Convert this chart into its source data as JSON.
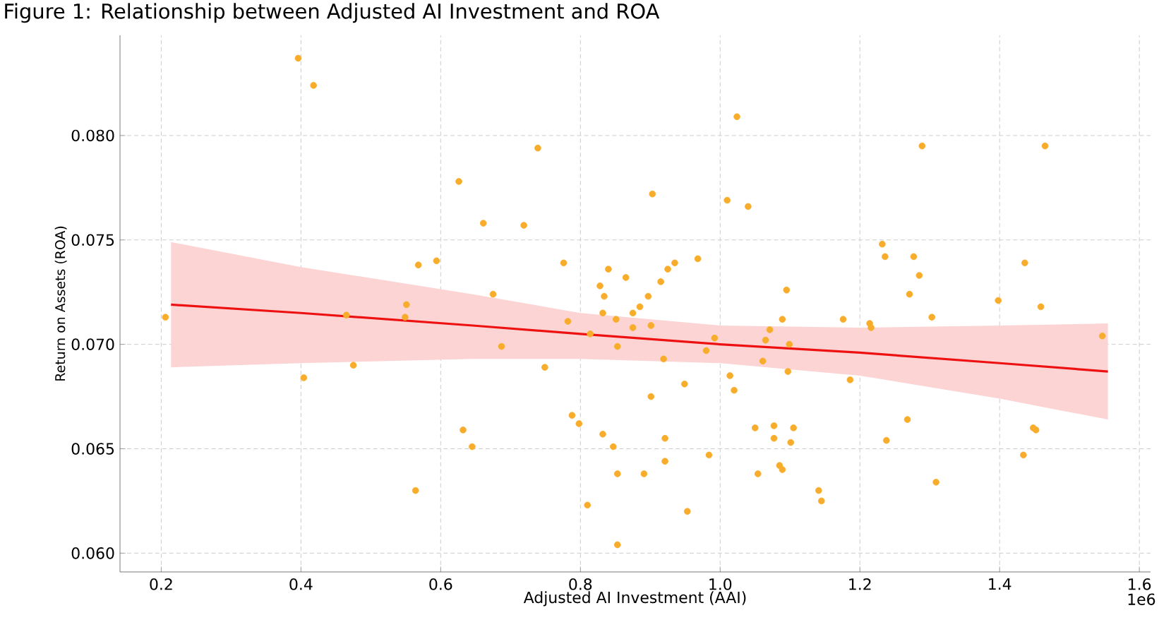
{
  "chart_data": {
    "type": "scatter",
    "title": "Figure 1: Relationship between Adjusted AI Investment and ROA",
    "xlabel": "Adjusted AI Investment (AAI)",
    "ylabel": "Return on Assets (ROA)",
    "annotations": [
      "1e6"
    ],
    "grid": true,
    "marker": "circle",
    "xlim": [
      0.141,
      1.616
    ],
    "ylim": [
      0.0591,
      0.0848
    ],
    "xticks": [
      {
        "value": 0.2,
        "label": "0.2"
      },
      {
        "value": 0.4,
        "label": "0.4"
      },
      {
        "value": 0.6,
        "label": "0.6"
      },
      {
        "value": 0.8,
        "label": "0.8"
      },
      {
        "value": 1.0,
        "label": "1.0"
      },
      {
        "value": 1.2,
        "label": "1.2"
      },
      {
        "value": 1.4,
        "label": "1.4"
      },
      {
        "value": 1.6,
        "label": "1.6"
      }
    ],
    "yticks": [
      {
        "value": 0.06,
        "label": "0.060"
      },
      {
        "value": 0.065,
        "label": "0.065"
      },
      {
        "value": 0.07,
        "label": "0.070"
      },
      {
        "value": 0.075,
        "label": "0.075"
      },
      {
        "value": 0.08,
        "label": "0.080"
      }
    ],
    "series": [
      {
        "color": "#f7ad2b",
        "x": [
          0.206,
          0.396,
          0.418,
          0.404,
          0.465,
          0.475,
          0.551,
          0.549,
          0.568,
          0.564,
          0.594,
          0.626,
          0.632,
          0.645,
          0.661,
          0.675,
          0.687,
          0.719,
          0.739,
          0.749,
          0.776,
          0.782,
          0.788,
          0.798,
          0.81,
          0.814,
          0.828,
          0.832,
          0.834,
          0.832,
          0.84,
          0.847,
          0.853,
          0.851,
          0.853,
          0.853,
          0.865,
          0.875,
          0.875,
          0.885,
          0.891,
          0.901,
          0.901,
          0.903,
          0.897,
          0.915,
          0.919,
          0.921,
          0.921,
          0.925,
          0.935,
          0.949,
          0.953,
          0.968,
          0.98,
          0.984,
          0.992,
          1.01,
          1.014,
          1.02,
          1.024,
          1.04,
          1.05,
          1.054,
          1.065,
          1.061,
          1.071,
          1.077,
          1.077,
          1.085,
          1.089,
          1.089,
          1.095,
          1.099,
          1.097,
          1.105,
          1.101,
          1.141,
          1.145,
          1.176,
          1.186,
          1.214,
          1.216,
          1.232,
          1.236,
          1.238,
          1.268,
          1.271,
          1.277,
          1.285,
          1.289,
          1.303,
          1.309,
          1.398,
          1.436,
          1.434,
          1.448,
          1.452,
          1.459,
          1.465,
          1.547
        ],
        "values": [
          0.0713,
          0.0837,
          0.0824,
          0.0684,
          0.0714,
          0.069,
          0.0719,
          0.0713,
          0.0738,
          0.063,
          0.074,
          0.0778,
          0.0659,
          0.0651,
          0.0758,
          0.0724,
          0.0699,
          0.0757,
          0.0794,
          0.0689,
          0.0739,
          0.0711,
          0.0666,
          0.0662,
          0.0623,
          0.0705,
          0.0728,
          0.0715,
          0.0723,
          0.0657,
          0.0736,
          0.0651,
          0.0604,
          0.0712,
          0.0699,
          0.0638,
          0.0732,
          0.0715,
          0.0708,
          0.0718,
          0.0638,
          0.0675,
          0.0709,
          0.0772,
          0.0723,
          0.073,
          0.0693,
          0.0644,
          0.0655,
          0.0736,
          0.0739,
          0.0681,
          0.062,
          0.0741,
          0.0697,
          0.0647,
          0.0703,
          0.0769,
          0.0685,
          0.0678,
          0.0809,
          0.0766,
          0.066,
          0.0638,
          0.0702,
          0.0692,
          0.0707,
          0.0655,
          0.0661,
          0.0642,
          0.064,
          0.0712,
          0.0726,
          0.07,
          0.0687,
          0.066,
          0.0653,
          0.063,
          0.0625,
          0.0712,
          0.0683,
          0.071,
          0.0708,
          0.0748,
          0.0742,
          0.0654,
          0.0664,
          0.0724,
          0.0742,
          0.0733,
          0.0795,
          0.0713,
          0.0634,
          0.0721,
          0.0739,
          0.0647,
          0.066,
          0.0659,
          0.0718,
          0.0795,
          0.0704
        ]
      },
      {
        "type": "line",
        "color": "#ee1111",
        "marker": "none",
        "x": [
          0.214,
          0.4,
          0.646,
          0.8,
          1.0,
          1.2,
          1.4,
          1.555
        ],
        "values": [
          0.0719,
          0.0715,
          0.0709,
          0.0705,
          0.07,
          0.0696,
          0.0691,
          0.0687
        ],
        "lower": [
          0.0689,
          0.0691,
          0.0693,
          0.0693,
          0.0691,
          0.0685,
          0.0674,
          0.0664
        ],
        "upper": [
          0.0749,
          0.0737,
          0.0724,
          0.0715,
          0.0709,
          0.0708,
          0.0709,
          0.071
        ]
      }
    ]
  }
}
